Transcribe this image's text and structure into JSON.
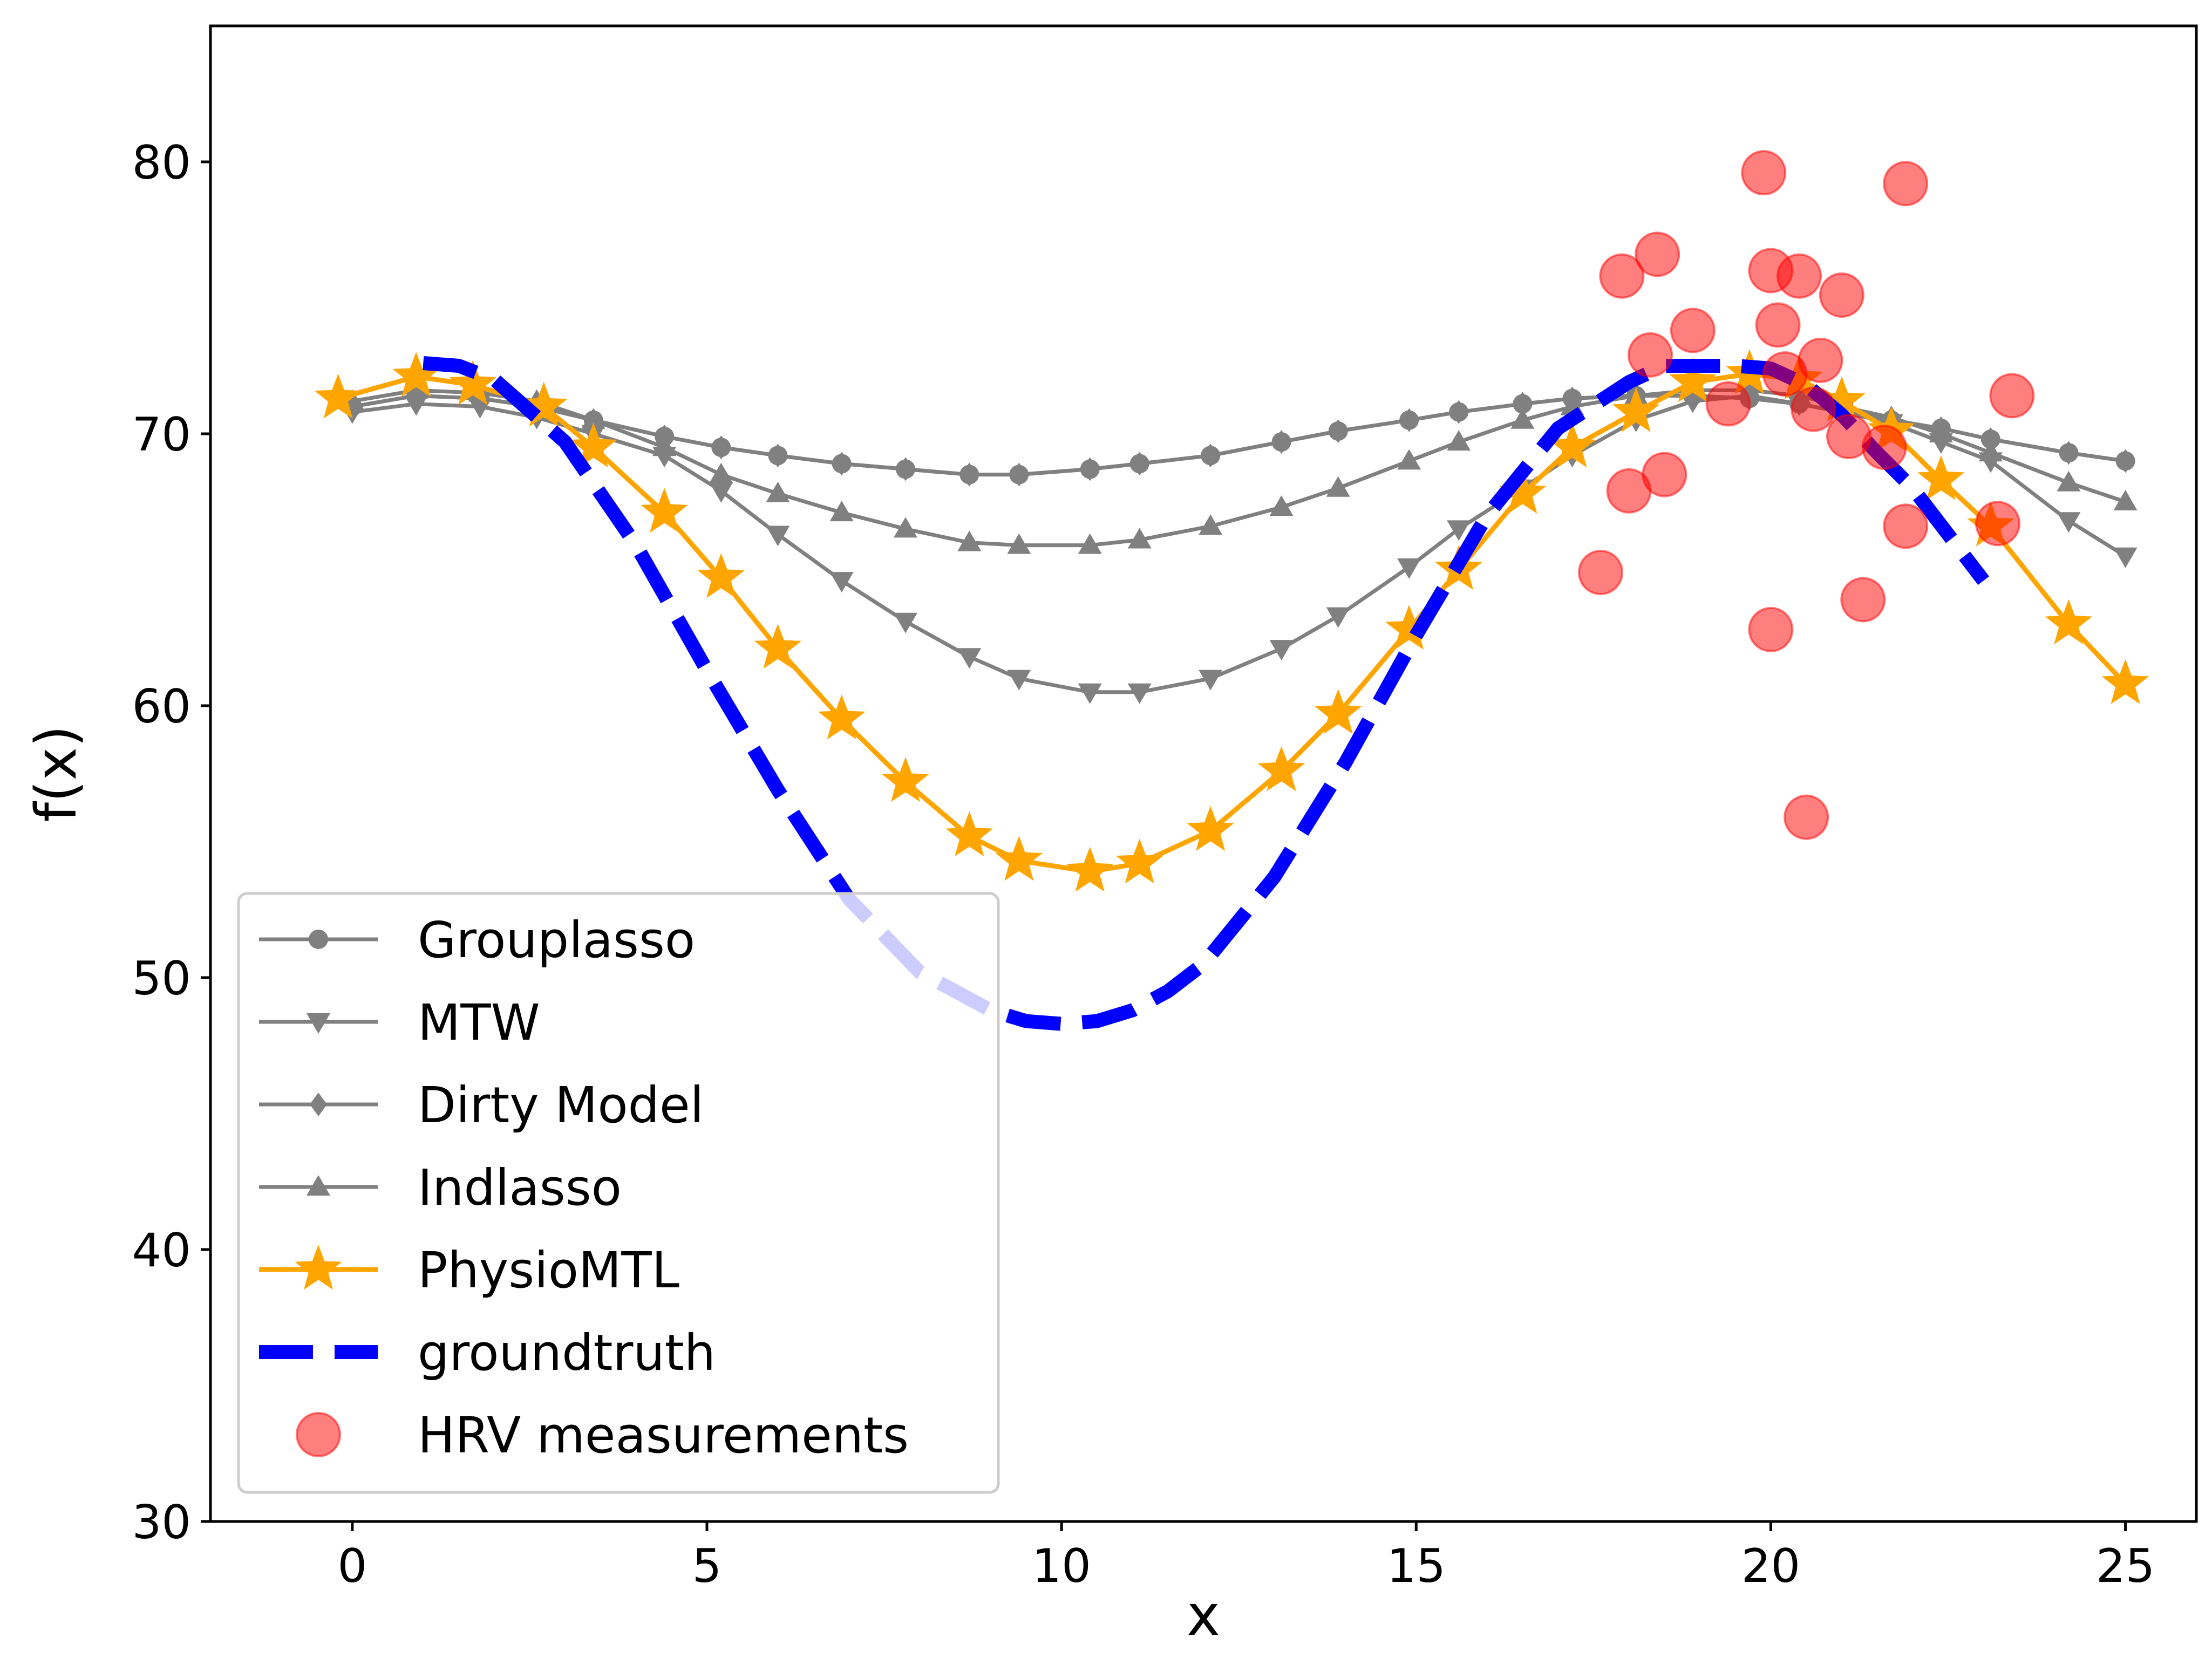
{
  "chart_data": {
    "type": "line",
    "title": "",
    "xlabel": "x",
    "ylabel": "f(x)",
    "xlim": [
      -2.0,
      26.0
    ],
    "ylim": [
      30,
      85
    ],
    "xticks": [
      0,
      5,
      10,
      15,
      20,
      25
    ],
    "yticks": [
      30,
      40,
      50,
      60,
      70,
      80
    ],
    "grid": false,
    "legend_position": "lower-left",
    "colors": {
      "baseline": "#808080",
      "physiomtl": "#FFA500",
      "groundtruth": "#0000FF",
      "hrv": "#FF0000"
    },
    "series": [
      {
        "name": "Grouplasso",
        "marker": "circle",
        "color": "#808080",
        "x": [
          0,
          0.9,
          1.8,
          2.6,
          3.4,
          4.4,
          5.2,
          6.0,
          6.9,
          7.8,
          8.7,
          9.4,
          10.4,
          11.1,
          12.1,
          13.1,
          13.9,
          14.9,
          15.6,
          16.5,
          17.2,
          18.1,
          18.9,
          19.7,
          20.4,
          21.0,
          21.7,
          22.4,
          23.1,
          24.2,
          25.0
        ],
        "y": [
          71.0,
          71.4,
          71.3,
          71.0,
          70.5,
          69.9,
          69.5,
          69.2,
          68.9,
          68.7,
          68.5,
          68.5,
          68.7,
          68.9,
          69.2,
          69.7,
          70.1,
          70.5,
          70.8,
          71.1,
          71.3,
          71.4,
          71.4,
          71.3,
          71.1,
          70.8,
          70.5,
          70.2,
          69.8,
          69.3,
          69.0
        ]
      },
      {
        "name": "MTW",
        "marker": "triangle-down",
        "color": "#808080",
        "x": [
          0,
          0.9,
          1.8,
          2.6,
          3.4,
          4.4,
          5.2,
          6.0,
          6.9,
          7.8,
          8.7,
          9.4,
          10.4,
          11.1,
          12.1,
          13.1,
          13.9,
          14.9,
          15.6,
          16.5,
          17.2,
          18.1,
          18.9,
          19.7,
          20.4,
          21.0,
          21.7,
          22.4,
          23.1,
          24.2,
          25.0
        ],
        "y": [
          70.8,
          71.1,
          71.0,
          70.6,
          70.0,
          69.2,
          67.9,
          66.3,
          64.6,
          63.1,
          61.8,
          61.0,
          60.5,
          60.5,
          61.0,
          62.1,
          63.3,
          65.1,
          66.5,
          68.0,
          69.2,
          70.5,
          71.2,
          71.4,
          71.1,
          70.8,
          70.4,
          69.7,
          69.0,
          66.8,
          65.5
        ]
      },
      {
        "name": "Dirty Model",
        "marker": "diamond",
        "color": "#808080",
        "x": [
          0,
          0.9,
          1.8,
          2.6,
          3.4,
          4.4,
          5.2,
          6.0,
          6.9,
          7.8,
          8.7,
          9.4,
          10.4,
          11.1,
          12.1,
          13.1,
          13.9,
          14.9,
          15.6,
          16.5,
          17.2,
          18.1,
          18.9,
          19.7,
          20.4,
          21.0,
          21.7,
          22.4,
          23.1,
          24.2,
          25.0
        ],
        "y": [
          71.0,
          71.4,
          71.3,
          71.0,
          70.5,
          69.9,
          69.5,
          69.2,
          68.9,
          68.7,
          68.5,
          68.5,
          68.7,
          68.9,
          69.2,
          69.7,
          70.1,
          70.5,
          70.8,
          71.1,
          71.3,
          71.4,
          71.4,
          71.3,
          71.1,
          70.8,
          70.5,
          70.2,
          69.8,
          69.3,
          69.0
        ]
      },
      {
        "name": "Indlasso",
        "marker": "triangle-up",
        "color": "#808080",
        "x": [
          0,
          0.9,
          1.8,
          2.6,
          3.4,
          4.4,
          5.2,
          6.0,
          6.9,
          7.8,
          8.7,
          9.4,
          10.4,
          11.1,
          12.1,
          13.1,
          13.9,
          14.9,
          15.6,
          16.5,
          17.2,
          18.1,
          18.9,
          19.7,
          20.4,
          21.0,
          21.7,
          22.4,
          23.1,
          24.2,
          25.0
        ],
        "y": [
          71.2,
          71.6,
          71.5,
          71.2,
          70.5,
          69.5,
          68.5,
          67.8,
          67.1,
          66.5,
          66.0,
          65.9,
          65.9,
          66.1,
          66.6,
          67.3,
          68.0,
          69.0,
          69.7,
          70.5,
          71.0,
          71.4,
          71.6,
          71.6,
          71.4,
          71.0,
          70.6,
          70.0,
          69.3,
          68.2,
          67.5
        ]
      },
      {
        "name": "PhysioMTL",
        "marker": "star",
        "color": "#FFA500",
        "x": [
          -0.2,
          0.9,
          1.7,
          2.7,
          3.4,
          4.4,
          5.2,
          6.0,
          6.9,
          7.8,
          8.7,
          9.4,
          10.4,
          11.1,
          12.1,
          13.1,
          13.9,
          14.9,
          15.6,
          16.5,
          17.2,
          18.1,
          18.9,
          19.7,
          20.4,
          21.0,
          21.7,
          22.4,
          23.1,
          24.2,
          25.0
        ],
        "y": [
          71.3,
          72.1,
          71.8,
          71.0,
          69.5,
          67.1,
          64.7,
          62.1,
          59.5,
          57.2,
          55.2,
          54.3,
          53.9,
          54.2,
          55.4,
          57.6,
          59.7,
          62.8,
          65.0,
          67.8,
          69.5,
          70.8,
          71.9,
          72.2,
          72.0,
          71.2,
          70.1,
          68.3,
          66.6,
          63.0,
          60.8
        ]
      },
      {
        "name": "groundtruth",
        "marker": "none",
        "color": "#0000FF",
        "linestyle": "dashed",
        "x": [
          1.0,
          1.5,
          2.0,
          3.0,
          4.0,
          5.0,
          6.0,
          7.0,
          8.0,
          9.0,
          9.5,
          10.0,
          10.5,
          11.0,
          11.5,
          12.0,
          13.0,
          14.0,
          15.0,
          16.0,
          17.0,
          18.0,
          18.5,
          19.0,
          19.5,
          20.0,
          20.5,
          21.0,
          21.5,
          22.0,
          23.0
        ],
        "y": [
          72.6,
          72.5,
          72.0,
          69.7,
          65.9,
          61.3,
          56.9,
          52.9,
          50.2,
          48.8,
          48.4,
          48.3,
          48.4,
          48.8,
          49.5,
          50.5,
          53.7,
          57.9,
          62.6,
          67.0,
          70.2,
          71.9,
          72.5,
          72.5,
          72.5,
          72.4,
          71.8,
          70.7,
          69.3,
          68.0,
          64.6
        ]
      },
      {
        "name": "HRV measurements",
        "marker": "circle-scatter",
        "color": "#FF0000",
        "x": [
          17.6,
          17.9,
          18.0,
          18.3,
          18.4,
          18.5,
          18.9,
          19.4,
          19.9,
          20.0,
          20.0,
          20.1,
          20.2,
          20.4,
          20.5,
          20.6,
          20.7,
          21.0,
          21.1,
          21.3,
          21.6,
          21.9,
          21.9,
          23.2,
          23.4
        ],
        "y": [
          64.9,
          75.8,
          67.9,
          72.9,
          76.6,
          68.5,
          73.8,
          71.1,
          79.6,
          76.0,
          62.8,
          74.0,
          72.2,
          75.8,
          55.9,
          70.9,
          72.7,
          75.1,
          69.9,
          63.9,
          69.5,
          66.6,
          79.2,
          66.7,
          71.4
        ]
      }
    ]
  }
}
